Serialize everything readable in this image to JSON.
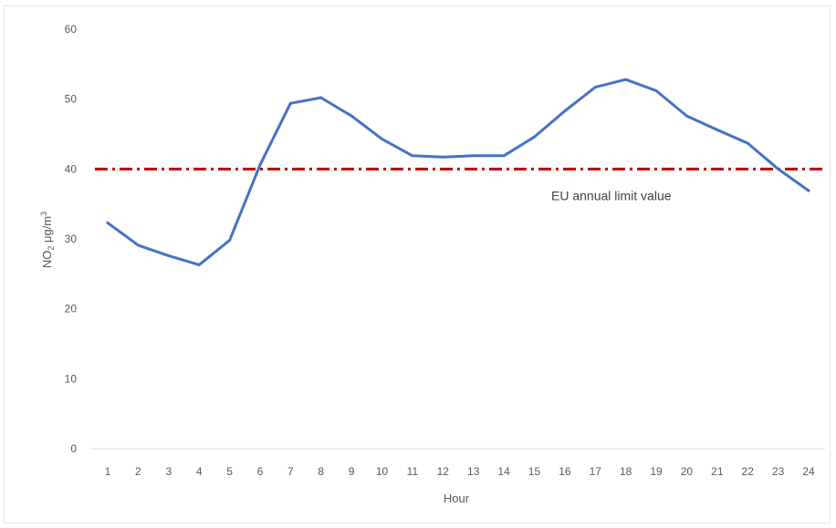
{
  "chart_data": {
    "type": "line",
    "x": [
      "1",
      "2",
      "3",
      "4",
      "5",
      "6",
      "7",
      "8",
      "9",
      "10",
      "11",
      "12",
      "13",
      "14",
      "15",
      "16",
      "17",
      "18",
      "19",
      "20",
      "21",
      "22",
      "23",
      "24"
    ],
    "series": [
      {
        "values": [
          32.3,
          29.1,
          27.6,
          26.3,
          29.8,
          40.6,
          49.4,
          50.2,
          47.6,
          44.3,
          41.9,
          41.7,
          41.9,
          41.9,
          44.6,
          48.3,
          51.7,
          52.8,
          51.2,
          47.6,
          45.6,
          43.7,
          40.0,
          36.9
        ],
        "color": "#4472C4"
      }
    ],
    "reference_line": {
      "value": 40,
      "label": "EU annual limit value",
      "color": "#C00000",
      "style": "dash-dot"
    },
    "ylabel_main": "NO",
    "ylabel_sub": "2",
    "ylabel_unit": " μg/m",
    "ylabel_sup": "3",
    "xlabel": "Hour",
    "yticks": [
      0,
      10,
      20,
      30,
      40,
      50,
      60
    ],
    "ylim": [
      0,
      60
    ],
    "grid": false
  }
}
